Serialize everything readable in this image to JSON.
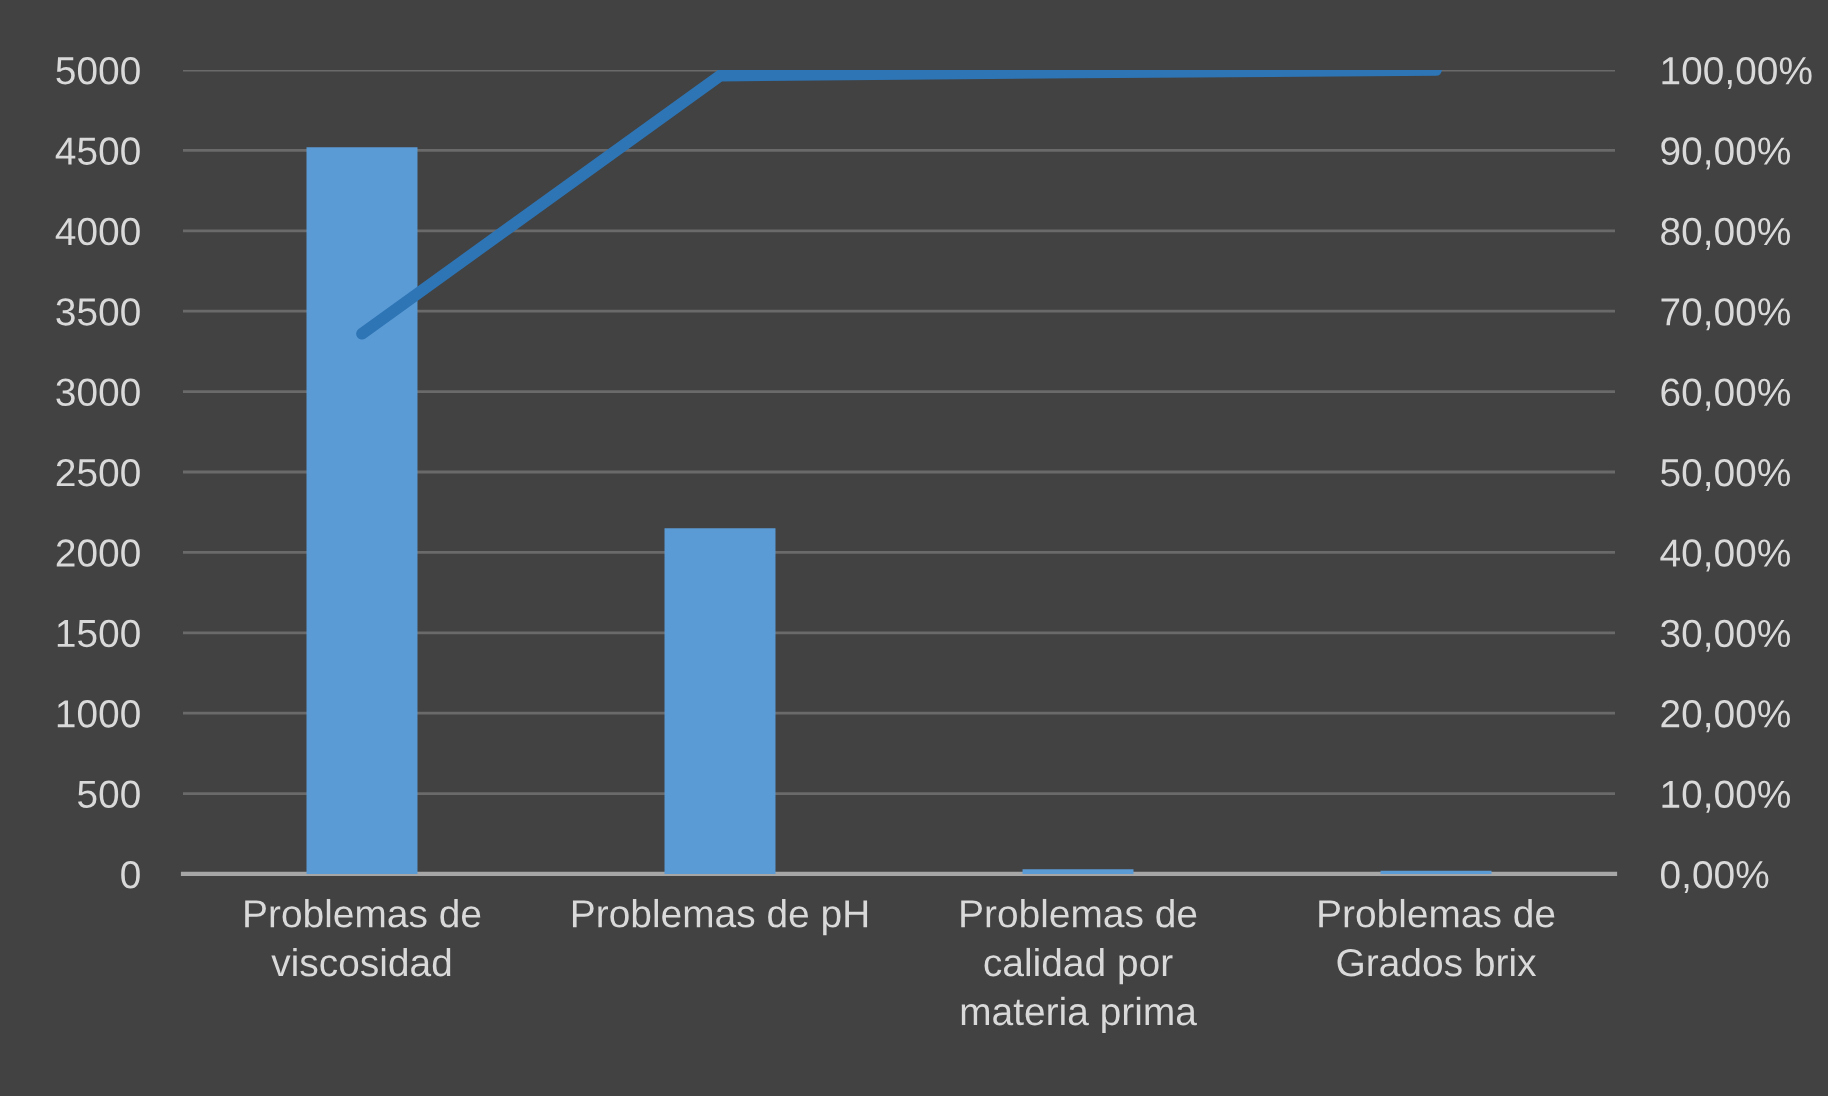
{
  "chart_data": {
    "type": "bar",
    "categories": [
      "Problemas de\nviscosidad",
      "Problemas de pH",
      "Problemas de\ncalidad por\nmateria prima",
      "Problemas de\nGrados brix"
    ],
    "series": [
      {
        "color": "#5b9bd5",
        "values": [
          4520,
          2150,
          30,
          20
        ]
      },
      {
        "type": "line",
        "axis": "y2",
        "color": "#2e75b6",
        "values": [
          67.2,
          99.3,
          99.7,
          100
        ]
      }
    ],
    "ylim": [
      0,
      5000
    ],
    "yticks": [
      0,
      500,
      1000,
      1500,
      2000,
      2500,
      3000,
      3500,
      4000,
      4500,
      5000
    ],
    "y2lim": [
      0,
      100
    ],
    "y2ticks": [
      {
        "value": 0,
        "label": "0,00%"
      },
      {
        "value": 10,
        "label": "10,00%"
      },
      {
        "value": 20,
        "label": "20,00%"
      },
      {
        "value": 30,
        "label": "30,00%"
      },
      {
        "value": 40,
        "label": "40,00%"
      },
      {
        "value": 50,
        "label": "50,00%"
      },
      {
        "value": 60,
        "label": "60,00%"
      },
      {
        "value": 70,
        "label": "70,00%"
      },
      {
        "value": 80,
        "label": "80,00%"
      },
      {
        "value": 90,
        "label": "90,00%"
      },
      {
        "value": 100,
        "label": "100,00%"
      }
    ],
    "grid": "y",
    "marker": "none",
    "line_style": "solid"
  }
}
